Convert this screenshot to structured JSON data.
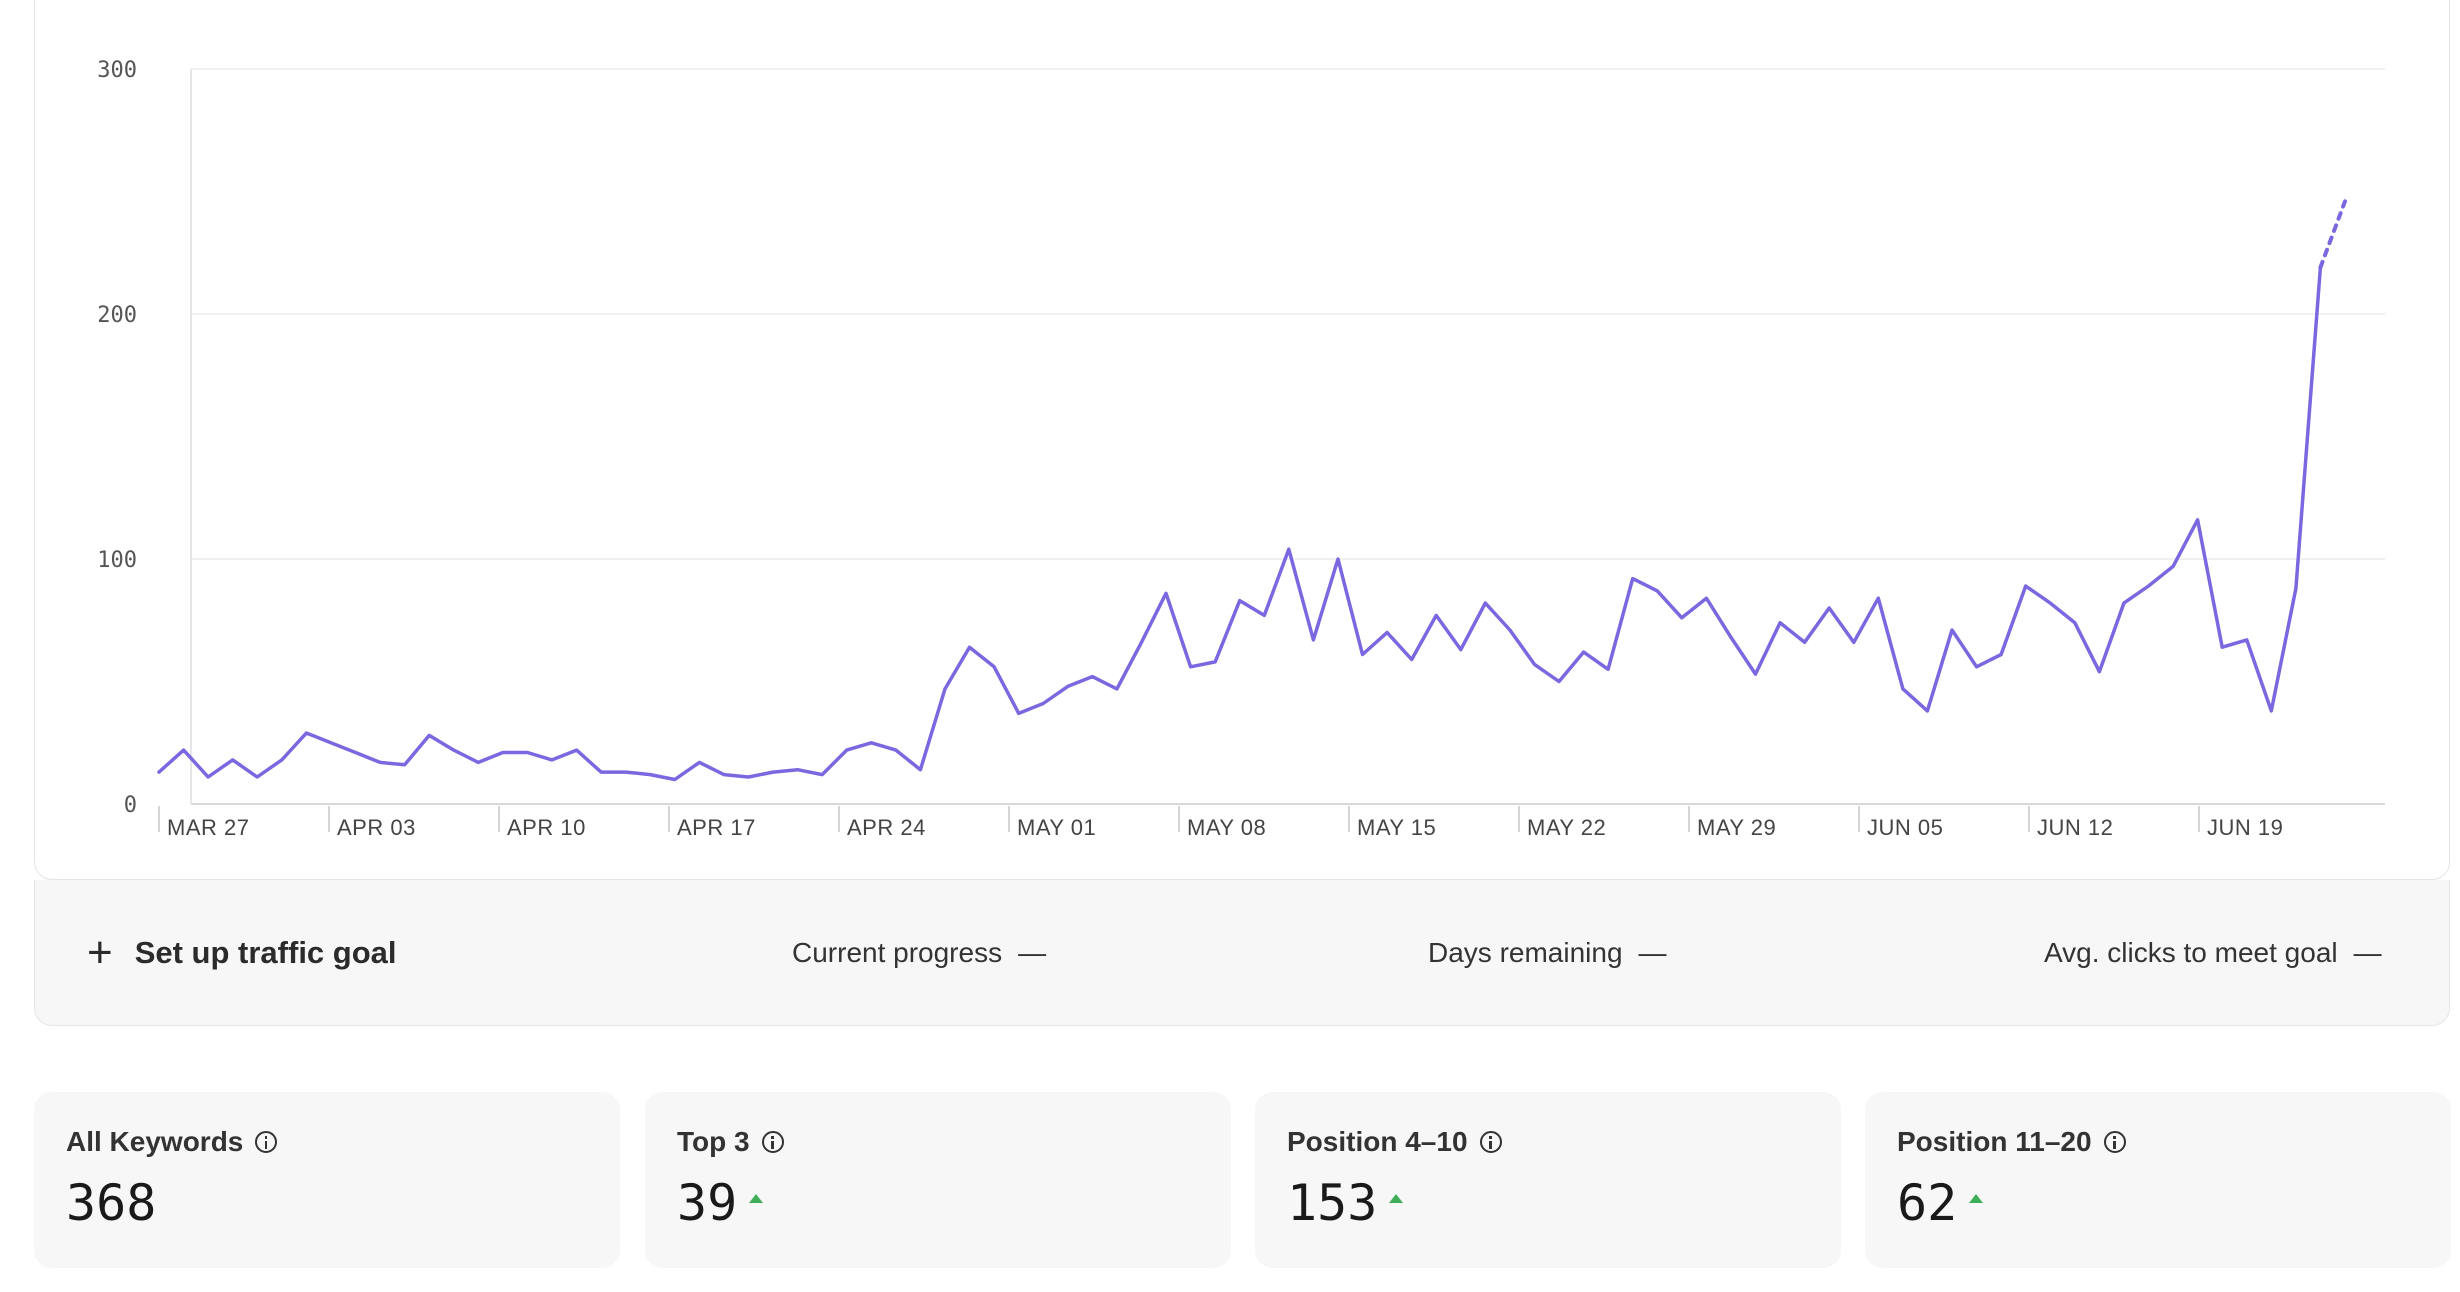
{
  "chart_data": {
    "type": "line",
    "x_ticks": [
      "MAR 27",
      "APR 03",
      "APR 10",
      "APR 17",
      "APR 24",
      "MAY 01",
      "MAY 08",
      "MAY 15",
      "MAY 22",
      "MAY 29",
      "JUN 05",
      "JUN 12",
      "JUN 19"
    ],
    "y_ticks": [
      "0",
      "100",
      "200",
      "300"
    ],
    "ylim": [
      0,
      300
    ],
    "grid": true,
    "series": [
      {
        "color": "#7b68e0",
        "values": [
          13,
          22,
          11,
          18,
          11,
          18,
          29,
          25,
          21,
          17,
          16,
          28,
          22,
          17,
          21,
          21,
          18,
          22,
          13,
          13,
          12,
          10,
          17,
          12,
          11,
          13,
          14,
          12,
          22,
          25,
          22,
          14,
          47,
          64,
          56,
          37,
          41,
          48,
          52,
          47,
          66,
          86,
          56,
          58,
          83,
          77,
          104,
          67,
          100,
          61,
          70,
          59,
          77,
          63,
          82,
          71,
          57,
          50,
          62,
          55,
          92,
          87,
          76,
          84,
          68,
          53,
          74,
          66,
          80,
          66,
          84,
          47,
          38,
          71,
          56,
          61,
          89,
          82,
          74,
          54,
          82,
          89,
          97,
          116,
          64,
          67,
          38,
          88,
          219
        ],
        "projected_values": [
          219,
          246
        ]
      }
    ]
  },
  "goal": {
    "setup_label": "Set up traffic goal",
    "current_progress_label": "Current progress",
    "current_progress_value": "—",
    "days_remaining_label": "Days remaining",
    "days_remaining_value": "—",
    "avg_clicks_label": "Avg. clicks to meet goal",
    "avg_clicks_value": "—"
  },
  "kpis": [
    {
      "title": "All Keywords",
      "value": "368",
      "trend": ""
    },
    {
      "title": "Top 3",
      "value": "39",
      "trend": "up"
    },
    {
      "title": "Position 4–10",
      "value": "153",
      "trend": "up"
    },
    {
      "title": "Position 11–20",
      "value": "62",
      "trend": "up"
    }
  ],
  "colors": {
    "line": "#7b68e0",
    "up": "#3fae5a"
  }
}
